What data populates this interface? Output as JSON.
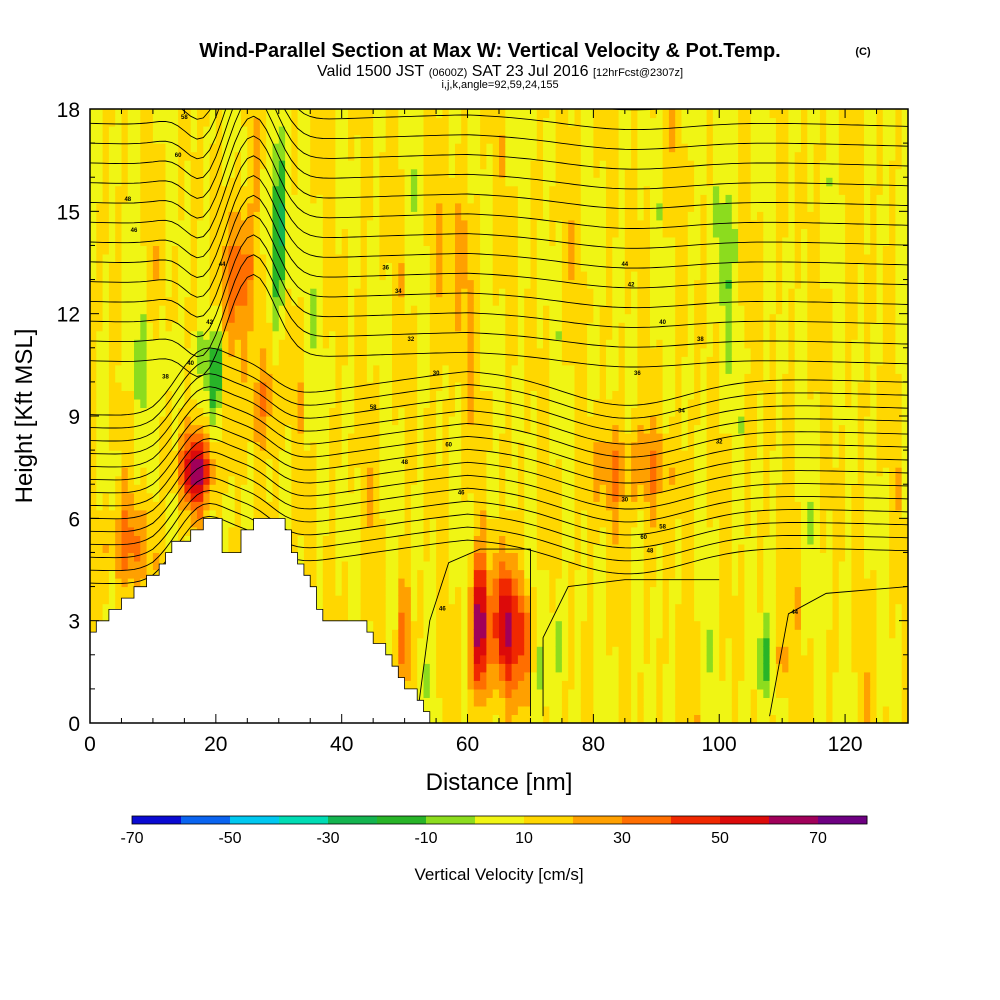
{
  "chart_data": {
    "type": "heatmap",
    "title": "Wind-Parallel Section at Max W: Vertical Velocity & Pot.Temp.",
    "title_mark": "(C)",
    "subtitle": {
      "prefix": "Valid 1500 JST",
      "utc": "(0600Z)",
      "date": "SAT 23 Jul 2016",
      "forecast": "[12hrFcst@2307z]"
    },
    "params": "i,j,k,angle=92,59,24,155",
    "xlabel": "Distance [nm]",
    "ylabel": "Height [Kft MSL]",
    "xlim": [
      0,
      130
    ],
    "ylim": [
      0,
      18
    ],
    "xticks": [
      "0",
      "20",
      "40",
      "60",
      "80",
      "100",
      "120"
    ],
    "yticks": [
      "0",
      "3",
      "6",
      "9",
      "12",
      "15",
      "18"
    ],
    "colorbar": {
      "label": "Vertical Velocity [cm/s]",
      "ticks": [
        "-70",
        "-50",
        "-30",
        "-10",
        "10",
        "30",
        "50",
        "70"
      ],
      "colors": [
        "#0a0ad2",
        "#0a64f0",
        "#00c8f0",
        "#00dcb4",
        "#14b450",
        "#28b428",
        "#8cdc1e",
        "#f0f514",
        "#ffd700",
        "#ffa000",
        "#ff6e00",
        "#f02800",
        "#dc0a0a",
        "#a0005a",
        "#6e0082"
      ]
    },
    "regions": [
      {
        "name": "strong updraft",
        "x_range": [
          60,
          70
        ],
        "z_range": [
          0.5,
          5
        ],
        "w_max": 60
      },
      {
        "name": "updraft aloft",
        "x_range": [
          14,
          20
        ],
        "z_range": [
          6,
          8.5
        ],
        "w_max": 50
      },
      {
        "name": "downdraft",
        "x_range": [
          28,
          32
        ],
        "z_range": [
          13,
          16
        ],
        "w_min": -35
      },
      {
        "name": "downdraft",
        "x_range": [
          105,
          109
        ],
        "z_range": [
          1,
          3
        ],
        "w_min": -25
      }
    ],
    "contour_labels": [
      "58",
      "60",
      "48",
      "46",
      "44",
      "42",
      "40",
      "38",
      "36",
      "34",
      "32",
      "30"
    ]
  }
}
